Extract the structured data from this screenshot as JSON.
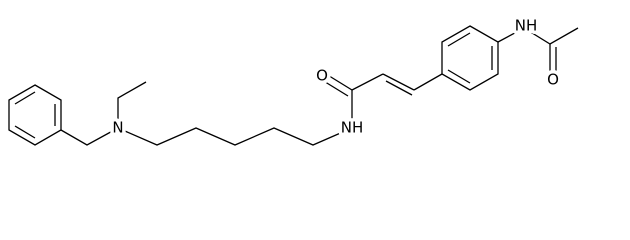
{
  "atom_labels": [
    "N",
    "NH",
    "O",
    "NH",
    "O"
  ]
}
